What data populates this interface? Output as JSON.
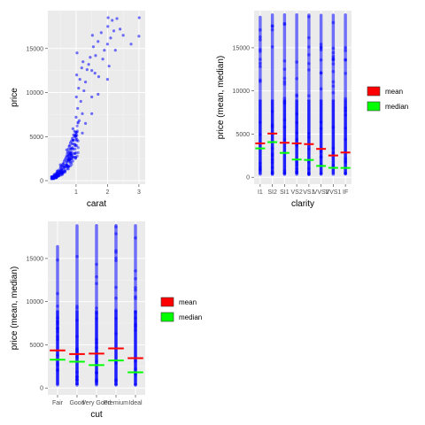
{
  "chart_data": [
    {
      "type": "scatter",
      "xlabel": "carat",
      "ylabel": "price",
      "xlim": [
        0.1,
        3.2
      ],
      "ylim": [
        -400,
        19300
      ],
      "x_ticks": [
        1,
        2,
        3
      ],
      "y_ticks": [
        0,
        5000,
        10000,
        15000
      ],
      "y_tick_labels": [
        "0",
        "5000",
        "10000",
        "15000"
      ],
      "grid": true,
      "point_color": "#0000ff",
      "points": [
        [
          0.23,
          326
        ],
        [
          0.25,
          420
        ],
        [
          0.3,
          520
        ],
        [
          0.32,
          620
        ],
        [
          0.35,
          760
        ],
        [
          0.38,
          880
        ],
        [
          0.4,
          900
        ],
        [
          0.42,
          1050
        ],
        [
          0.45,
          1180
        ],
        [
          0.5,
          1450
        ],
        [
          0.52,
          1620
        ],
        [
          0.55,
          1700
        ],
        [
          0.58,
          1880
        ],
        [
          0.6,
          1950
        ],
        [
          0.62,
          2200
        ],
        [
          0.65,
          2400
        ],
        [
          0.68,
          2600
        ],
        [
          0.7,
          2800
        ],
        [
          0.72,
          3100
        ],
        [
          0.74,
          3300
        ],
        [
          0.76,
          3600
        ],
        [
          0.78,
          3900
        ],
        [
          0.8,
          4000
        ],
        [
          0.82,
          4300
        ],
        [
          0.85,
          4500
        ],
        [
          0.88,
          4800
        ],
        [
          0.9,
          4600
        ],
        [
          0.92,
          5200
        ],
        [
          0.95,
          5600
        ],
        [
          1.0,
          5500
        ],
        [
          1.0,
          7200
        ],
        [
          1.01,
          9500
        ],
        [
          1.02,
          12000
        ],
        [
          1.03,
          14500
        ],
        [
          1.05,
          8200
        ],
        [
          1.08,
          10500
        ],
        [
          1.1,
          6800
        ],
        [
          1.12,
          11500
        ],
        [
          1.15,
          9000
        ],
        [
          1.18,
          12800
        ],
        [
          1.2,
          7600
        ],
        [
          1.22,
          13500
        ],
        [
          1.25,
          10200
        ],
        [
          1.3,
          11200
        ],
        [
          1.35,
          12600
        ],
        [
          1.4,
          13200
        ],
        [
          1.45,
          14000
        ],
        [
          1.5,
          9500
        ],
        [
          1.5,
          12500
        ],
        [
          1.52,
          16500
        ],
        [
          1.55,
          15200
        ],
        [
          1.6,
          12200
        ],
        [
          1.62,
          14200
        ],
        [
          1.7,
          15800
        ],
        [
          1.72,
          11800
        ],
        [
          1.8,
          16800
        ],
        [
          1.85,
          13800
        ],
        [
          1.9,
          14800
        ],
        [
          2.0,
          15500
        ],
        [
          2.0,
          11500
        ],
        [
          2.01,
          17500
        ],
        [
          2.02,
          18500
        ],
        [
          2.05,
          13000
        ],
        [
          2.1,
          16200
        ],
        [
          2.15,
          18200
        ],
        [
          2.2,
          17000
        ],
        [
          2.25,
          14800
        ],
        [
          2.3,
          18400
        ],
        [
          2.4,
          17200
        ],
        [
          2.5,
          16500
        ],
        [
          2.75,
          15500
        ],
        [
          3.0,
          16400
        ],
        [
          3.01,
          18500
        ],
        [
          0.3,
          700
        ],
        [
          0.4,
          1100
        ],
        [
          0.5,
          1800
        ],
        [
          0.7,
          3500
        ],
        [
          0.9,
          5900
        ],
        [
          1.2,
          5400
        ],
        [
          1.3,
          6500
        ],
        [
          1.5,
          7600
        ],
        [
          1.7,
          9800
        ],
        [
          0.35,
          600
        ],
        [
          0.45,
          900
        ],
        [
          0.55,
          1300
        ],
        [
          0.6,
          1600
        ],
        [
          0.75,
          2400
        ],
        [
          0.85,
          3000
        ]
      ]
    },
    {
      "type": "strip",
      "xlabel": "clarity",
      "ylabel": "price (mean, median)",
      "categories": [
        "I1",
        "SI2",
        "SI1",
        "VS2",
        "VS1",
        "VVS2",
        "VVS1",
        "IF"
      ],
      "ylim": [
        -800,
        19300
      ],
      "y_ticks": [
        0,
        5000,
        10000,
        15000
      ],
      "y_tick_labels": [
        "0",
        "5000",
        "10000",
        "15000"
      ],
      "grid": true,
      "mean": [
        3924,
        5063,
        3996,
        3925,
        3839,
        3284,
        2523,
        2865
      ],
      "median": [
        3344,
        4072,
        2822,
        2054,
        2005,
        1311,
        1093,
        1080
      ],
      "price_range": [
        [
          345,
          18531
        ],
        [
          326,
          18804
        ],
        [
          326,
          18818
        ],
        [
          334,
          18823
        ],
        [
          327,
          18795
        ],
        [
          336,
          18768
        ],
        [
          336,
          18777
        ],
        [
          369,
          18806
        ]
      ],
      "point_color": "#0000ff",
      "legend": {
        "position": "right",
        "items": [
          {
            "label": "mean",
            "color": "#ff0000"
          },
          {
            "label": "median",
            "color": "#00ff00"
          }
        ]
      }
    },
    {
      "type": "strip",
      "xlabel": "cut",
      "ylabel": "price (mean, median)",
      "categories": [
        "Fair",
        "Good",
        "Very Good",
        "Premium",
        "Ideal"
      ],
      "ylim": [
        -800,
        19300
      ],
      "y_ticks": [
        0,
        5000,
        10000,
        15000
      ],
      "y_tick_labels": [
        "0",
        "5000",
        "10000",
        "15000"
      ],
      "grid": true,
      "mean": [
        4359,
        3929,
        3982,
        4584,
        3458
      ],
      "median": [
        3282,
        3050,
        2648,
        3185,
        1810
      ],
      "price_range": [
        [
          337,
          16386
        ],
        [
          327,
          18788
        ],
        [
          336,
          18818
        ],
        [
          326,
          18823
        ],
        [
          326,
          18806
        ]
      ],
      "point_color": "#0000ff",
      "legend": {
        "position": "right",
        "items": [
          {
            "label": "mean",
            "color": "#ff0000"
          },
          {
            "label": "median",
            "color": "#00ff00"
          }
        ]
      }
    }
  ]
}
